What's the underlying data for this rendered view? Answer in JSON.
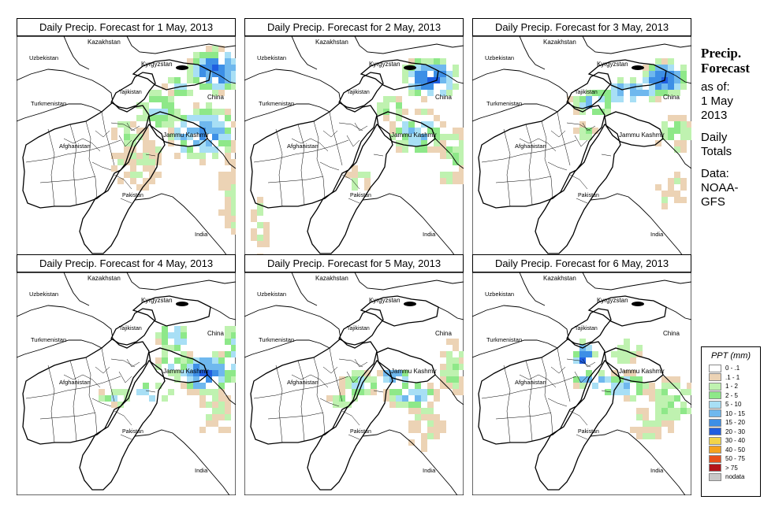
{
  "figure": {
    "panels": [
      {
        "title": "Daily Precip. Forecast for  1 May, 2013",
        "day": 1
      },
      {
        "title": "Daily Precip. Forecast for  2 May, 2013",
        "day": 2
      },
      {
        "title": "Daily Precip. Forecast for  3 May, 2013",
        "day": 3
      },
      {
        "title": "Daily Precip. Forecast for  4 May, 2013",
        "day": 4
      },
      {
        "title": "Daily Precip. Forecast for  5 May, 2013",
        "day": 5
      },
      {
        "title": "Daily Precip. Forecast for  6 May, 2013",
        "day": 6
      }
    ],
    "map_labels": {
      "kazakhstan": "Kazakhstan",
      "uzbekistan": "Uzbekistan",
      "kyrgyzstan": "Kyrgyzstan",
      "tajikistan": "Tajikistan",
      "turkmenistan": "Turkmenistan",
      "china": "China",
      "jammu_kashmir": "Jammu Kashmir",
      "afghanistan": "Afghanistan",
      "pakistan": "Pakistan",
      "india": "India"
    }
  },
  "side_info": {
    "title_line1": "Precip.",
    "title_line2": "Forecast",
    "as_of": "as of:",
    "date_line1": "1 May",
    "date_line2": "2013",
    "totals_line1": "Daily",
    "totals_line2": "Totals",
    "data_line1": "Data:",
    "data_line2": "NOAA-",
    "data_line3": "GFS"
  },
  "legend": {
    "title": "PPT (mm)",
    "items": [
      {
        "label": "0 - .1",
        "color": "#ffffff"
      },
      {
        "label": ".1 - 1",
        "color": "#ecd3b5"
      },
      {
        "label": "1 - 2",
        "color": "#bff2b0"
      },
      {
        "label": "2 - 5",
        "color": "#8ee889"
      },
      {
        "label": "5 - 10",
        "color": "#a8dff5"
      },
      {
        "label": "10 - 15",
        "color": "#6fb8ee"
      },
      {
        "label": "15 - 20",
        "color": "#3d8fe6"
      },
      {
        "label": "20 - 30",
        "color": "#1f5ee0"
      },
      {
        "label": "30 - 40",
        "color": "#f2d449"
      },
      {
        "label": "40 - 50",
        "color": "#f5a21e"
      },
      {
        "label": "50 - 75",
        "color": "#e8501a"
      },
      {
        "label": "> 75",
        "color": "#b3141a"
      },
      {
        "label": "nodata",
        "color": "#c8c8c8"
      }
    ]
  }
}
